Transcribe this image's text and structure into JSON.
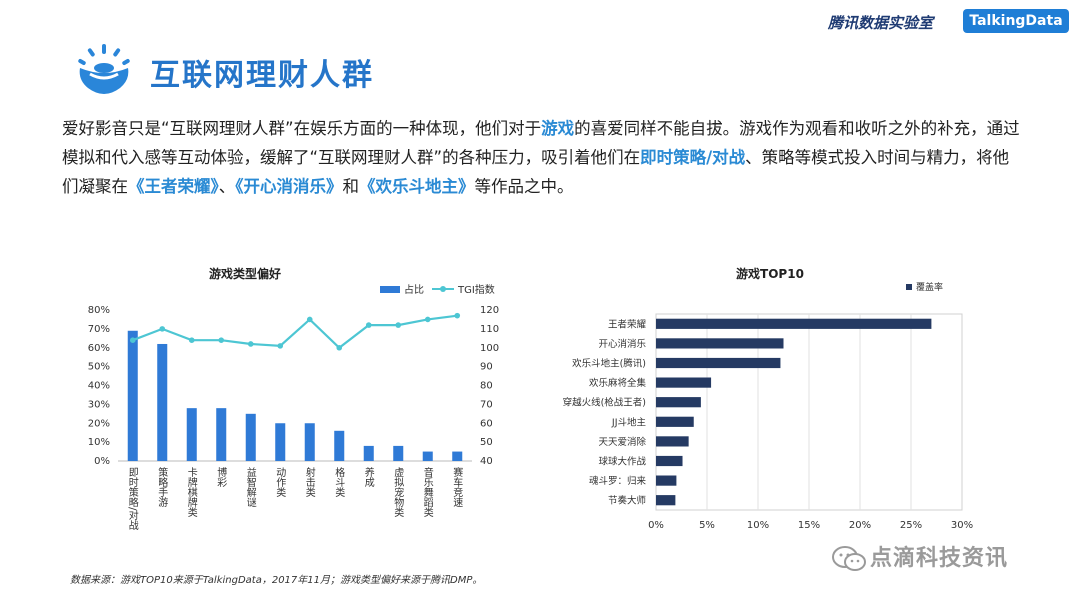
{
  "header": {
    "brand_cn": "腾讯数据实验室",
    "brand_badge": "TalkingData"
  },
  "page": {
    "title": "互联网理财人群",
    "intro_parts": [
      {
        "text": "爱好影音只是“互联网理财人群”在娱乐方面的一种体现，他们对于",
        "hl": false
      },
      {
        "text": "游戏",
        "hl": true
      },
      {
        "text": "的喜爱同样不能自拔。游戏作为观看和收听之外的补充，通过模拟和代入感等互动体验，缓解了“互联网理财人群”的各种压力，吸引着他们在",
        "hl": false
      },
      {
        "text": "即时策略/对战",
        "hl": true
      },
      {
        "text": "、策略等模式投入时间与精力，将他们凝聚在",
        "hl": false
      },
      {
        "text": "《王者荣耀》",
        "hl": true
      },
      {
        "text": "、",
        "hl": false
      },
      {
        "text": "《开心消消乐》",
        "hl": true
      },
      {
        "text": "和",
        "hl": false
      },
      {
        "text": "《欢乐斗地主》",
        "hl": true
      },
      {
        "text": "等作品之中。",
        "hl": false
      }
    ],
    "source_note": "数据来源：游戏TOP10来源于TalkingData，2017年11月；游戏类型偏好来源于腾讯DMP。",
    "watermark": "点滴科技资讯"
  },
  "colors": {
    "bar_blue": "#2f7ad6",
    "line_teal": "#4dc6d3",
    "bar_navy": "#253a63",
    "title_blue": "#2575c9"
  },
  "chart_data": [
    {
      "type": "bar",
      "title": "游戏类型偏好",
      "categories": [
        "即时策略/对战",
        "策略手游",
        "卡牌/棋牌类",
        "博彩",
        "益智/解谜",
        "动作类",
        "射击类",
        "格斗类",
        "养成",
        "虚拟宠物类",
        "音乐/舞蹈类",
        "赛车/竞速"
      ],
      "category_labels": [
        "即时策略/对战",
        "策略手游",
        "卡牌棋牌类",
        "博彩",
        "益智解谜",
        "动作类",
        "射击类",
        "格斗类",
        "养成",
        "虚拟宠物类",
        "音乐舞蹈类",
        "赛车竞速"
      ],
      "series": [
        {
          "name": "占比",
          "type": "bar",
          "axis": "left",
          "values": [
            0.69,
            0.62,
            0.28,
            0.28,
            0.25,
            0.2,
            0.2,
            0.16,
            0.08,
            0.08,
            0.05,
            0.05
          ]
        },
        {
          "name": "TGI指数",
          "type": "line",
          "axis": "right",
          "values": [
            104,
            110,
            104,
            104,
            102,
            101,
            115,
            100,
            112,
            112,
            115,
            117
          ]
        }
      ],
      "y_left": {
        "min": 0,
        "max": 0.8,
        "ticks": [
          "0%",
          "10%",
          "20%",
          "30%",
          "40%",
          "50%",
          "60%",
          "70%",
          "80%"
        ]
      },
      "y_right": {
        "min": 40,
        "max": 120,
        "ticks": [
          "40",
          "50",
          "60",
          "70",
          "80",
          "90",
          "100",
          "110",
          "120"
        ]
      },
      "legend": "top-right",
      "grid": false
    },
    {
      "type": "bar",
      "orientation": "horizontal",
      "title": "游戏TOP10",
      "categories": [
        "王者荣耀",
        "开心消消乐",
        "欢乐斗地主(腾讯)",
        "欢乐麻将全集",
        "穿越火线(枪战王者)",
        "JJ斗地主",
        "天天爱消除",
        "球球大作战",
        "魂斗罗：归来",
        "节奏大师"
      ],
      "series": [
        {
          "name": "覆盖率",
          "values": [
            0.27,
            0.125,
            0.122,
            0.054,
            0.044,
            0.037,
            0.032,
            0.026,
            0.02,
            0.019
          ]
        }
      ],
      "x_axis": {
        "min": 0,
        "max": 0.3,
        "ticks": [
          "0%",
          "5%",
          "10%",
          "15%",
          "20%",
          "25%",
          "30%"
        ]
      },
      "legend": "top-right",
      "grid": true
    }
  ]
}
